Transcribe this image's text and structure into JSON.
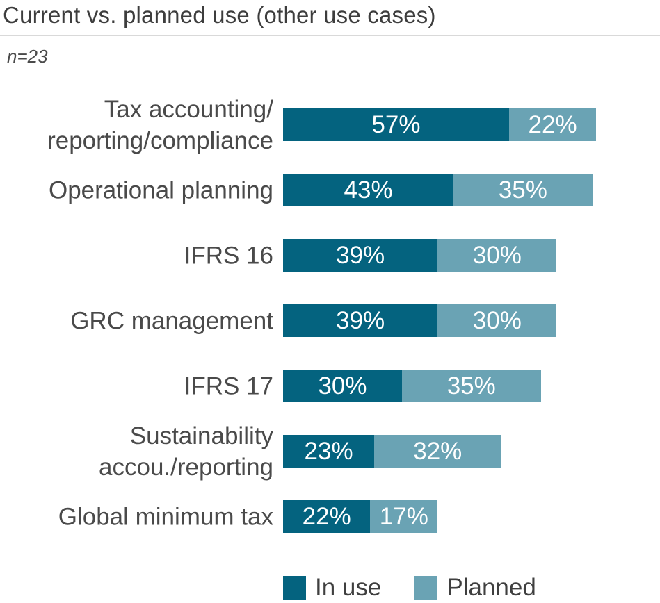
{
  "header": {
    "title": "Current vs. planned use (other use cases)"
  },
  "note": {
    "text": "n=23"
  },
  "colors": {
    "in_use": "#04637f",
    "planned": "#6aa3b4",
    "title_text": "#3d3d3d",
    "label_text": "#4a4a4a",
    "value_text": "#ffffff",
    "divider": "#d9d9d9"
  },
  "legend": {
    "items": [
      {
        "label": "In use",
        "color": "#04637f"
      },
      {
        "label": "Planned",
        "color": "#6aa3b4"
      }
    ]
  },
  "chart_data": {
    "type": "bar",
    "orientation": "horizontal",
    "stacked": true,
    "title": "Current vs. planned use (other use cases)",
    "sample_size": "n=23",
    "unit": "%",
    "xlim": [
      0,
      100
    ],
    "grid": false,
    "value_labels": "inside-center",
    "legend_position": "bottom",
    "categories": [
      "Tax accounting/\nreporting/compliance",
      "Operational planning",
      "IFRS 16",
      "GRC management",
      "IFRS 17",
      "Sustainability\naccou./reporting",
      "Global minimum tax"
    ],
    "series": [
      {
        "name": "In use",
        "values": [
          57,
          43,
          39,
          39,
          30,
          23,
          22
        ]
      },
      {
        "name": "Planned",
        "values": [
          22,
          35,
          30,
          30,
          35,
          32,
          17
        ]
      }
    ]
  }
}
